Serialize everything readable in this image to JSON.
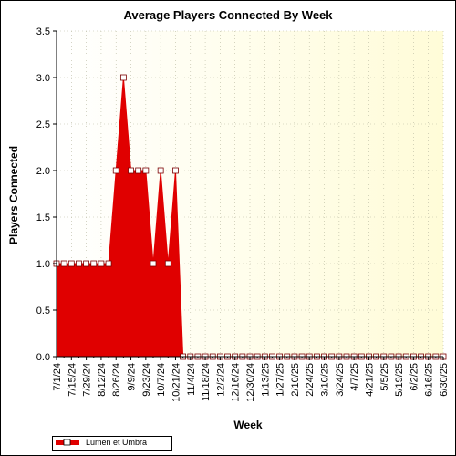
{
  "chart_data": {
    "type": "area",
    "title": "Average Players Connected By Week",
    "xlabel": "Week",
    "ylabel": "Players Connected",
    "ylim": [
      0,
      3.5
    ],
    "yticks": [
      "0.0",
      "0.5",
      "1.0",
      "1.5",
      "2.0",
      "2.5",
      "3.0",
      "3.5"
    ],
    "grid": true,
    "legend_position": "bottom-left",
    "fill_color": "#e00000",
    "marker_color": "#ffffff",
    "plot_background": "#fffde0",
    "x": [
      "2024-07-01",
      "2024-07-08",
      "2024-07-15",
      "2024-07-22",
      "2024-07-29",
      "2024-08-05",
      "2024-08-12",
      "2024-08-19",
      "2024-08-26",
      "2024-09-02",
      "2024-09-09",
      "2024-09-16",
      "2024-09-23",
      "2024-09-30",
      "2024-10-07",
      "2024-10-14",
      "2024-10-21",
      "2024-10-28",
      "2024-11-04",
      "2024-11-11",
      "2024-11-18",
      "2024-11-25",
      "2024-12-02",
      "2024-12-09",
      "2024-12-16",
      "2024-12-23",
      "2024-12-30",
      "2025-01-06",
      "2025-01-13",
      "2025-01-20",
      "2025-01-27",
      "2025-02-03",
      "2025-02-10",
      "2025-02-17",
      "2025-02-24",
      "2025-03-03",
      "2025-03-10",
      "2025-03-17",
      "2025-03-24",
      "2025-03-31",
      "2025-04-07",
      "2025-04-14",
      "2025-04-21",
      "2025-04-28",
      "2025-05-05",
      "2025-05-12",
      "2025-05-19",
      "2025-05-26",
      "2025-06-02",
      "2025-06-09",
      "2025-06-16",
      "2025-06-23",
      "2025-06-30"
    ],
    "tick_labels": [
      "7/1/24",
      "7/15/24",
      "7/29/24",
      "8/12/24",
      "8/26/24",
      "9/9/24",
      "9/23/24",
      "10/7/24",
      "10/21/24",
      "11/4/24",
      "11/18/24",
      "12/2/24",
      "12/16/24",
      "12/30/24",
      "1/13/25",
      "1/27/25",
      "2/10/25",
      "2/24/25",
      "3/10/25",
      "3/24/25",
      "4/7/25",
      "4/21/25",
      "5/5/25",
      "5/19/25",
      "6/2/25",
      "6/16/25",
      "6/30/25"
    ],
    "series": [
      {
        "name": "Lumen et Umbra",
        "values": [
          1,
          1,
          1,
          1,
          1,
          1,
          1,
          1,
          2,
          3,
          2,
          2,
          2,
          1,
          2,
          1,
          2,
          0,
          0,
          0,
          0,
          0,
          0,
          0,
          0,
          0,
          0,
          0,
          0,
          0,
          0,
          0,
          0,
          0,
          0,
          0,
          0,
          0,
          0,
          0,
          0,
          0,
          0,
          0,
          0,
          0,
          0,
          0,
          0,
          0,
          0,
          0,
          0
        ]
      }
    ]
  }
}
